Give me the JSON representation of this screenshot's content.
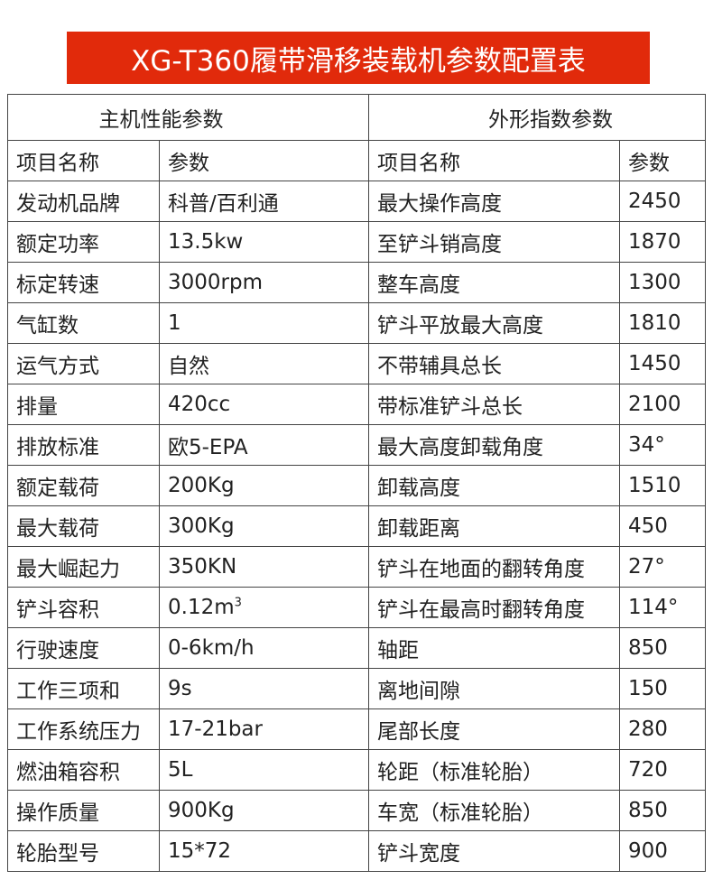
{
  "title": "XG-T360履带滑移装载机参数配置表",
  "sections": {
    "left": "主机性能参数",
    "right": "外形指数参数"
  },
  "headers": {
    "left_name": "项目名称",
    "left_value": "参数",
    "right_name": "项目名称",
    "right_value": "参数"
  },
  "rows": [
    {
      "ln": "发动机品牌",
      "lv": "科普/百利通",
      "rn": "最大操作高度",
      "rv": "2450"
    },
    {
      "ln": "额定功率",
      "lv": "13.5kw",
      "rn": "至铲斗销高度",
      "rv": "1870"
    },
    {
      "ln": "标定转速",
      "lv": "3000rpm",
      "rn": "整车高度",
      "rv": "1300"
    },
    {
      "ln": "气缸数",
      "lv": "1",
      "rn": "铲斗平放最大高度",
      "rv": "1810"
    },
    {
      "ln": "运气方式",
      "lv": "自然",
      "rn": "不带辅具总长",
      "rv": "1450"
    },
    {
      "ln": "排量",
      "lv": "420cc",
      "rn": "带标准铲斗总长",
      "rv": "2100"
    },
    {
      "ln": "排放标准",
      "lv": "欧5-EPA",
      "rn": "最大高度卸载角度",
      "rv": "34°"
    },
    {
      "ln": "额定载荷",
      "lv": "200Kg",
      "rn": "卸载高度",
      "rv": "1510"
    },
    {
      "ln": "最大载荷",
      "lv": "300Kg",
      "rn": "卸载距离",
      "rv": "450"
    },
    {
      "ln": "最大崛起力",
      "lv": "350KN",
      "rn": "铲斗在地面的翻转角度",
      "rv": "27°"
    },
    {
      "ln": "铲斗容积",
      "lv": "0.12m",
      "lv_sup": "3",
      "rn": "铲斗在最高时翻转角度",
      "rv": "114°"
    },
    {
      "ln": "行驶速度",
      "lv": "0-6km/h",
      "rn": "轴距",
      "rv": "850"
    },
    {
      "ln": "工作三项和",
      "lv": "9s",
      "rn": "离地间隙",
      "rv": "150"
    },
    {
      "ln": "工作系统压力",
      "lv": "17-21bar",
      "rn": "尾部长度",
      "rv": "280"
    },
    {
      "ln": "燃油箱容积",
      "lv": "5L",
      "rn": "轮距（标准轮胎）",
      "rv": "720"
    },
    {
      "ln": "操作质量",
      "lv": "900Kg",
      "rn": "车宽（标准轮胎）",
      "rv": "850"
    },
    {
      "ln": "轮胎型号",
      "lv": "15*72",
      "rn": "铲斗宽度",
      "rv": "900"
    }
  ],
  "colors": {
    "title_bg": "#e12a0b",
    "title_text": "#ffffff",
    "border": "#444444"
  }
}
